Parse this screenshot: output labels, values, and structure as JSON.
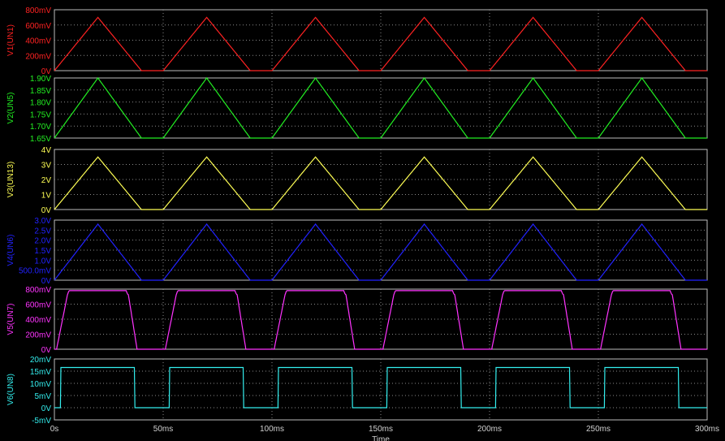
{
  "chart_data": {
    "type": "line",
    "x": {
      "unit": "ms",
      "range": [
        0,
        300
      ],
      "ticks": [
        0,
        50,
        100,
        150,
        200,
        250,
        300
      ],
      "tick_labels": [
        "0s",
        "50ms",
        "100ms",
        "150ms",
        "200ms",
        "250ms",
        "300ms"
      ],
      "xlabel": "Time"
    },
    "grid": true,
    "background": "#000000",
    "frame_color": "#bdbdbd",
    "panels": [
      {
        "ylabel": "V1(UN1)",
        "color": "#ff2222",
        "ylim": [
          0,
          0.8
        ],
        "ticks": [
          0,
          0.2,
          0.4,
          0.6,
          0.8
        ],
        "tick_labels": [
          "0V",
          "200mV",
          "400mV",
          "600mV",
          "800mV"
        ],
        "min": 0,
        "max": 0.7,
        "shape": "triangle"
      },
      {
        "ylabel": "V2(UN5)",
        "color": "#22ee22",
        "ylim": [
          1.65,
          1.9
        ],
        "ticks": [
          1.65,
          1.7,
          1.75,
          1.8,
          1.85,
          1.9
        ],
        "tick_labels": [
          "1.65V",
          "1.70V",
          "1.75V",
          "1.80V",
          "1.85V",
          "1.90V"
        ],
        "min": 1.65,
        "max": 1.9,
        "shape": "triangle"
      },
      {
        "ylabel": "V3(UN13)",
        "color": "#ffff55",
        "ylim": [
          0,
          4
        ],
        "ticks": [
          0,
          1,
          2,
          3,
          4
        ],
        "tick_labels": [
          "0V",
          "1V",
          "2V",
          "3V",
          "4V"
        ],
        "min": 0,
        "max": 3.5,
        "shape": "triangle"
      },
      {
        "ylabel": "V4(UN6)",
        "color": "#2222ff",
        "ylim": [
          0,
          3.0
        ],
        "ticks": [
          0,
          0.5,
          1.0,
          1.5,
          2.0,
          2.5,
          3.0
        ],
        "tick_labels": [
          "0V",
          "500.0mV",
          "1.0V",
          "1.5V",
          "2.0V",
          "2.5V",
          "3.0V"
        ],
        "min": 0,
        "max": 2.8,
        "shape": "triangle"
      },
      {
        "ylabel": "V5(UN7)",
        "color": "#ff33ff",
        "ylim": [
          0,
          0.8
        ],
        "ticks": [
          0,
          0.2,
          0.4,
          0.6,
          0.8
        ],
        "tick_labels": [
          "0V",
          "200mV",
          "400mV",
          "600mV",
          "800mV"
        ],
        "min": 0,
        "max": 0.78,
        "shape": "clipped"
      },
      {
        "ylabel": "V6(UN8)",
        "color": "#33eeee",
        "ylim": [
          -0.005,
          0.02
        ],
        "ticks": [
          -0.005,
          0,
          0.005,
          0.01,
          0.015,
          0.02
        ],
        "tick_labels": [
          "-5mV",
          "0V",
          "5mV",
          "10mV",
          "15mV",
          "20mV"
        ],
        "min": 0,
        "max": 0.0165,
        "shape": "square"
      }
    ],
    "period_ms": 50,
    "cycles": [
      {
        "start": 0,
        "peak": 20,
        "end": 40
      },
      {
        "start": 50,
        "peak": 70,
        "end": 90
      },
      {
        "start": 100,
        "peak": 120,
        "end": 140
      },
      {
        "start": 150,
        "peak": 170,
        "end": 190
      },
      {
        "start": 200,
        "peak": 220,
        "end": 240
      },
      {
        "start": 250,
        "peak": 270,
        "end": 290
      }
    ],
    "square_wave": {
      "high_from_ms": 3,
      "high_to_ms": 37
    },
    "clipped_wave": {
      "rise_ms": [
        1,
        6
      ],
      "flat_ms": [
        7,
        33
      ],
      "fall_ms": [
        34,
        38
      ]
    }
  }
}
